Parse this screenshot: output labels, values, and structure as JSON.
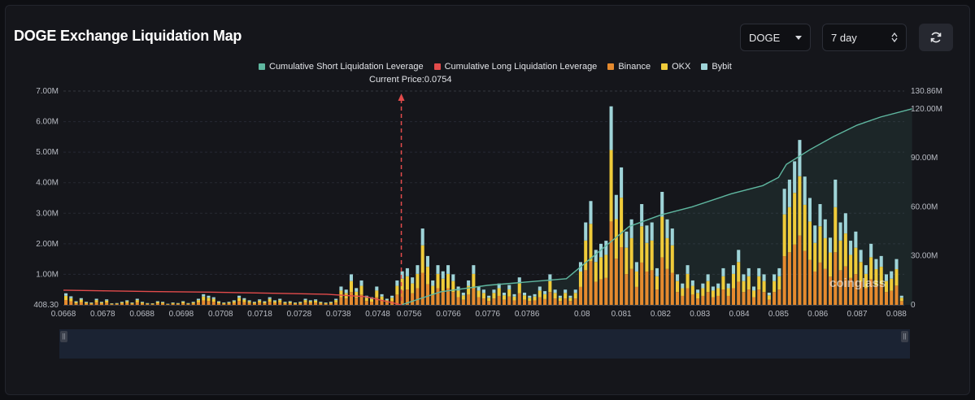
{
  "header": {
    "title": "DOGE Exchange Liquidation Map",
    "coin_select": "DOGE",
    "range_select": "7 day"
  },
  "watermark": "coinglass",
  "colors": {
    "short_cum": "#5fb7a0",
    "long_cum": "#e24b4b",
    "binance": "#e58a2e",
    "okx": "#efcb3a",
    "bybit": "#9fd4d8",
    "background": "#15161b"
  },
  "chart_data": {
    "type": "bar",
    "legend": [
      "Cumulative Short Liquidation Leverage",
      "Cumulative Long Liquidation Leverage",
      "Binance",
      "OKX",
      "Bybit"
    ],
    "current_price_label": "Current Price:0.0754",
    "current_price": 0.0754,
    "x_ticks": [
      "0.0668",
      "0.0678",
      "0.0688",
      "0.0698",
      "0.0708",
      "0.0718",
      "0.0728",
      "0.0738",
      "0.0748",
      "0.0756",
      "0.0766",
      "0.0776",
      "0.0786",
      "0.08",
      "0.081",
      "0.082",
      "0.083",
      "0.084",
      "0.085",
      "0.086",
      "0.087",
      "0.088"
    ],
    "y_left_ticks": [
      "408.30",
      "1.00M",
      "2.00M",
      "3.00M",
      "4.00M",
      "5.00M",
      "6.00M",
      "7.00M"
    ],
    "y_right_ticks": [
      "0",
      "30.00M",
      "60.00M",
      "90.00M",
      "120.00M",
      "130.86M"
    ],
    "y_left_range": [
      0,
      7000000
    ],
    "y_right_range": [
      0,
      130860000
    ],
    "totals_M": [
      0.38,
      0.28,
      0.12,
      0.22,
      0.1,
      0.08,
      0.2,
      0.1,
      0.18,
      0.05,
      0.06,
      0.1,
      0.15,
      0.08,
      0.2,
      0.1,
      0.06,
      0.05,
      0.12,
      0.1,
      0.04,
      0.08,
      0.06,
      0.12,
      0.06,
      0.1,
      0.2,
      0.35,
      0.3,
      0.25,
      0.12,
      0.08,
      0.1,
      0.15,
      0.3,
      0.22,
      0.15,
      0.1,
      0.18,
      0.12,
      0.25,
      0.15,
      0.2,
      0.1,
      0.12,
      0.08,
      0.1,
      0.2,
      0.15,
      0.18,
      0.1,
      0.08,
      0.1,
      0.2,
      0.6,
      0.5,
      1.0,
      0.55,
      0.8,
      0.3,
      0.25,
      0.6,
      0.35,
      0.2,
      0.3,
      0.8,
      1.1,
      1.2,
      0.9,
      1.3,
      2.5,
      1.6,
      0.8,
      1.3,
      1.1,
      1.3,
      1.0,
      0.6,
      0.4,
      0.8,
      1.3,
      0.6,
      0.5,
      0.3,
      0.5,
      0.7,
      0.4,
      0.65,
      0.35,
      0.9,
      0.4,
      0.3,
      0.35,
      0.6,
      0.45,
      1.0,
      0.5,
      0.3,
      0.5,
      0.3,
      0.5,
      1.4,
      2.7,
      3.4,
      1.8,
      2.0,
      2.1,
      6.5,
      3.6,
      4.5,
      2.4,
      2.8,
      1.4,
      3.3,
      2.6,
      2.7,
      1.2,
      3.7,
      2.8,
      2.5,
      1.0,
      0.7,
      1.3,
      0.8,
      0.5,
      0.7,
      1.0,
      0.6,
      0.7,
      1.2,
      0.7,
      1.3,
      1.8,
      1.0,
      1.2,
      0.6,
      1.2,
      1.0,
      0.4,
      1.0,
      1.2,
      3.8,
      4.1,
      4.7,
      5.4,
      4.2,
      3.5,
      2.6,
      3.3,
      2.8,
      2.2,
      4.1,
      2.7,
      3.0,
      2.1,
      2.4,
      1.8,
      1.3,
      2.0,
      1.5,
      1.6,
      1.0,
      1.1,
      1.5,
      0.3
    ],
    "series": [
      {
        "name": "Cumulative Short Liquidation Leverage",
        "points": [
          [
            0.0754,
            0
          ],
          [
            0.0764,
            8
          ],
          [
            0.0776,
            12
          ],
          [
            0.0786,
            14
          ],
          [
            0.0796,
            16
          ],
          [
            0.0803,
            30
          ],
          [
            0.0812,
            48
          ],
          [
            0.082,
            55
          ],
          [
            0.0828,
            60
          ],
          [
            0.0838,
            68
          ],
          [
            0.0846,
            73
          ],
          [
            0.085,
            78
          ],
          [
            0.0852,
            86
          ],
          [
            0.0858,
            95
          ],
          [
            0.0864,
            103
          ],
          [
            0.087,
            110
          ],
          [
            0.0876,
            115
          ],
          [
            0.0884,
            120
          ]
        ]
      },
      {
        "name": "Cumulative Long Liquidation Leverage",
        "points": [
          [
            0.0668,
            9
          ],
          [
            0.0678,
            8.6
          ],
          [
            0.069,
            8.2
          ],
          [
            0.0705,
            7.8
          ],
          [
            0.072,
            7.2
          ],
          [
            0.0735,
            6.5
          ],
          [
            0.0745,
            5.0
          ],
          [
            0.0754,
            0
          ]
        ]
      }
    ]
  }
}
